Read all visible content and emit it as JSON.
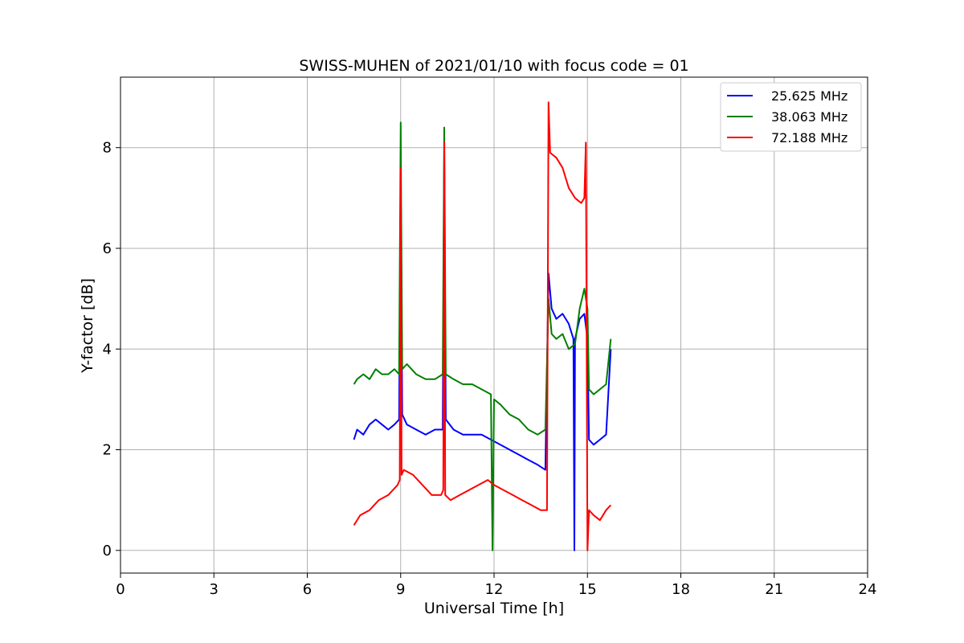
{
  "chart_data": {
    "type": "line",
    "title": "SWISS-MUHEN of 2021/01/10 with focus code = 01",
    "xlabel": "Universal Time [h]",
    "ylabel": "Y-factor [dB]",
    "xlim": [
      0,
      24
    ],
    "ylim": [
      -0.45,
      9.4
    ],
    "xticks": [
      0,
      3,
      6,
      9,
      12,
      15,
      18,
      21,
      24
    ],
    "yticks": [
      0,
      2,
      4,
      6,
      8
    ],
    "grid": true,
    "legend": "top-right",
    "series": [
      {
        "name": "25.625 MHz",
        "color": "#0000ff",
        "x": [
          7.5,
          7.6,
          7.8,
          8.0,
          8.2,
          8.4,
          8.6,
          8.8,
          8.95,
          9.0,
          9.05,
          9.2,
          9.5,
          9.8,
          10.1,
          10.35,
          10.4,
          10.45,
          10.7,
          11.0,
          11.3,
          11.6,
          11.9,
          12.2,
          12.5,
          12.8,
          13.1,
          13.4,
          13.65,
          13.75,
          13.85,
          14.0,
          14.2,
          14.4,
          14.55,
          14.58,
          14.6,
          14.75,
          14.9,
          15.0,
          15.05,
          15.2,
          15.4,
          15.6,
          15.75
        ],
        "y": [
          2.2,
          2.4,
          2.3,
          2.5,
          2.6,
          2.5,
          2.4,
          2.5,
          2.6,
          7.5,
          2.7,
          2.5,
          2.4,
          2.3,
          2.4,
          2.4,
          7.8,
          2.6,
          2.4,
          2.3,
          2.3,
          2.3,
          2.2,
          2.1,
          2.0,
          1.9,
          1.8,
          1.7,
          1.6,
          5.5,
          4.8,
          4.6,
          4.7,
          4.5,
          4.2,
          0.0,
          4.2,
          4.6,
          4.7,
          4.2,
          2.2,
          2.1,
          2.2,
          2.3,
          4.0
        ]
      },
      {
        "name": "38.063 MHz",
        "color": "#008000",
        "x": [
          7.5,
          7.6,
          7.8,
          8.0,
          8.2,
          8.4,
          8.6,
          8.8,
          8.95,
          9.0,
          9.05,
          9.2,
          9.5,
          9.8,
          10.1,
          10.35,
          10.4,
          10.45,
          10.7,
          11.0,
          11.3,
          11.6,
          11.9,
          11.95,
          12.0,
          12.2,
          12.5,
          12.8,
          13.1,
          13.4,
          13.65,
          13.75,
          13.85,
          14.0,
          14.2,
          14.4,
          14.6,
          14.75,
          14.9,
          15.0,
          15.05,
          15.2,
          15.4,
          15.6,
          15.75
        ],
        "y": [
          3.3,
          3.4,
          3.5,
          3.4,
          3.6,
          3.5,
          3.5,
          3.6,
          3.5,
          8.5,
          3.6,
          3.7,
          3.5,
          3.4,
          3.4,
          3.5,
          8.4,
          3.5,
          3.4,
          3.3,
          3.3,
          3.2,
          3.1,
          0.0,
          3.0,
          2.9,
          2.7,
          2.6,
          2.4,
          2.3,
          2.4,
          5.0,
          4.3,
          4.2,
          4.3,
          4.0,
          4.1,
          4.8,
          5.2,
          4.8,
          3.2,
          3.1,
          3.2,
          3.3,
          4.2
        ]
      },
      {
        "name": "72.188 MHz",
        "color": "#ff0000",
        "x": [
          7.5,
          7.7,
          8.0,
          8.3,
          8.6,
          8.9,
          8.97,
          9.0,
          9.03,
          9.1,
          9.4,
          9.7,
          10.0,
          10.3,
          10.37,
          10.4,
          10.43,
          10.6,
          10.9,
          11.2,
          11.5,
          11.8,
          12.0,
          12.3,
          12.6,
          12.9,
          13.2,
          13.5,
          13.7,
          13.75,
          13.8,
          14.0,
          14.2,
          14.4,
          14.6,
          14.8,
          14.9,
          14.95,
          15.0,
          15.05,
          15.2,
          15.4,
          15.6,
          15.75
        ],
        "y": [
          0.5,
          0.7,
          0.8,
          1.0,
          1.1,
          1.3,
          1.4,
          7.6,
          1.5,
          1.6,
          1.5,
          1.3,
          1.1,
          1.1,
          1.2,
          8.1,
          1.1,
          1.0,
          1.1,
          1.2,
          1.3,
          1.4,
          1.3,
          1.2,
          1.1,
          1.0,
          0.9,
          0.8,
          0.8,
          8.9,
          7.9,
          7.8,
          7.6,
          7.2,
          7.0,
          6.9,
          7.0,
          8.1,
          0.0,
          0.8,
          0.7,
          0.6,
          0.8,
          0.9
        ]
      }
    ]
  }
}
